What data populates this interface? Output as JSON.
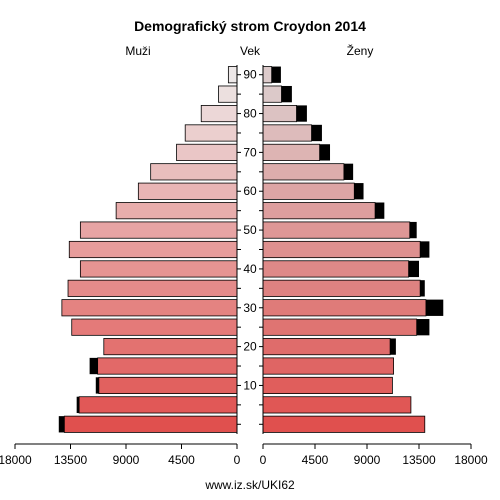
{
  "chart_data": {
    "type": "bar",
    "title": "Demografický strom Croydon 2014",
    "left_label": "Muži",
    "center_label": "Vek",
    "right_label": "Ženy",
    "footer": "www.iz.sk/UKI62",
    "xlim": [
      0,
      18000
    ],
    "x_ticks": [
      18000,
      13500,
      9000,
      4500,
      0
    ],
    "age_tick_labels": [
      "10",
      "20",
      "30",
      "40",
      "50",
      "60",
      "70",
      "80",
      "90"
    ],
    "age_groups": [
      "0-4",
      "5-9",
      "10-14",
      "15-19",
      "20-24",
      "25-29",
      "30-34",
      "35-39",
      "40-44",
      "45-49",
      "50-54",
      "55-59",
      "60-64",
      "65-69",
      "70-74",
      "75-79",
      "80-84",
      "85-89",
      "90+"
    ],
    "series": [
      {
        "name": "Muži",
        "values": [
          14000,
          12800,
          11200,
          11300,
          10800,
          13400,
          14200,
          13700,
          12700,
          13600,
          12700,
          9800,
          8000,
          7000,
          4900,
          4200,
          2900,
          1500,
          700
        ],
        "excess": [
          450,
          200,
          250,
          650,
          0,
          0,
          0,
          0,
          0,
          0,
          0,
          0,
          0,
          0,
          0,
          0,
          0,
          0,
          0
        ]
      },
      {
        "name": "Ženy",
        "values": [
          14000,
          12800,
          11200,
          11300,
          11000,
          13300,
          14100,
          13600,
          12600,
          13600,
          12700,
          9700,
          7900,
          7000,
          4900,
          4200,
          2900,
          1600,
          750
        ],
        "excess": [
          0,
          0,
          0,
          0,
          500,
          1100,
          1500,
          400,
          900,
          800,
          600,
          800,
          800,
          800,
          900,
          900,
          900,
          900,
          800
        ]
      }
    ]
  },
  "colors": {
    "excess": "#000000",
    "young_left": "#e0504e",
    "old_left": "#ede8e8",
    "bar_stroke": "#000000"
  }
}
